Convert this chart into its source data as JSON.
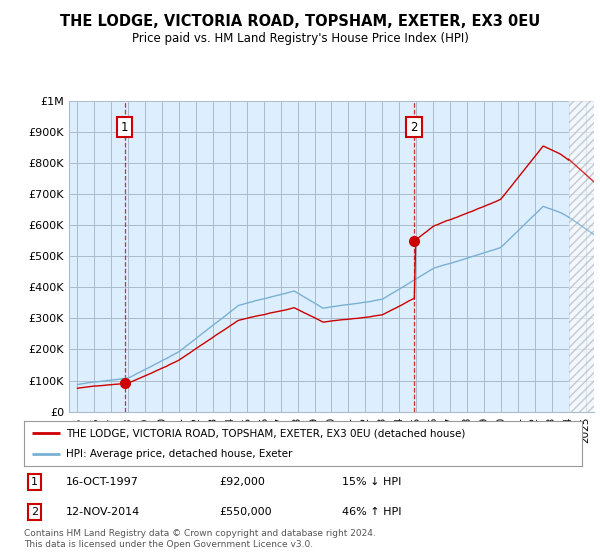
{
  "title": "THE LODGE, VICTORIA ROAD, TOPSHAM, EXETER, EX3 0EU",
  "subtitle": "Price paid vs. HM Land Registry's House Price Index (HPI)",
  "xlim": [
    1994.5,
    2025.5
  ],
  "ylim": [
    0,
    1000000
  ],
  "yticks": [
    0,
    100000,
    200000,
    300000,
    400000,
    500000,
    600000,
    700000,
    800000,
    900000,
    1000000
  ],
  "ytick_labels": [
    "£0",
    "£100K",
    "£200K",
    "£300K",
    "£400K",
    "£500K",
    "£600K",
    "£700K",
    "£800K",
    "£900K",
    "£1M"
  ],
  "sale1_x": 1997.79,
  "sale1_y": 92000,
  "sale2_x": 2014.87,
  "sale2_y": 550000,
  "sale_color": "#cc0000",
  "hpi_color": "#7ab0d4",
  "bg_color": "#ddeeff",
  "grid_color": "#aabbcc",
  "hatch_color": "#aaaaaa",
  "hatch_end": 2025.5,
  "hatch_start": 2024.0,
  "legend_text1": "THE LODGE, VICTORIA ROAD, TOPSHAM, EXETER, EX3 0EU (detached house)",
  "legend_text2": "HPI: Average price, detached house, Exeter",
  "note1_date": "16-OCT-1997",
  "note1_price": "£92,000",
  "note1_hpi": "15% ↓ HPI",
  "note2_date": "12-NOV-2014",
  "note2_price": "£550,000",
  "note2_hpi": "46% ↑ HPI",
  "footer": "Contains HM Land Registry data © Crown copyright and database right 2024.\nThis data is licensed under the Open Government Licence v3.0."
}
